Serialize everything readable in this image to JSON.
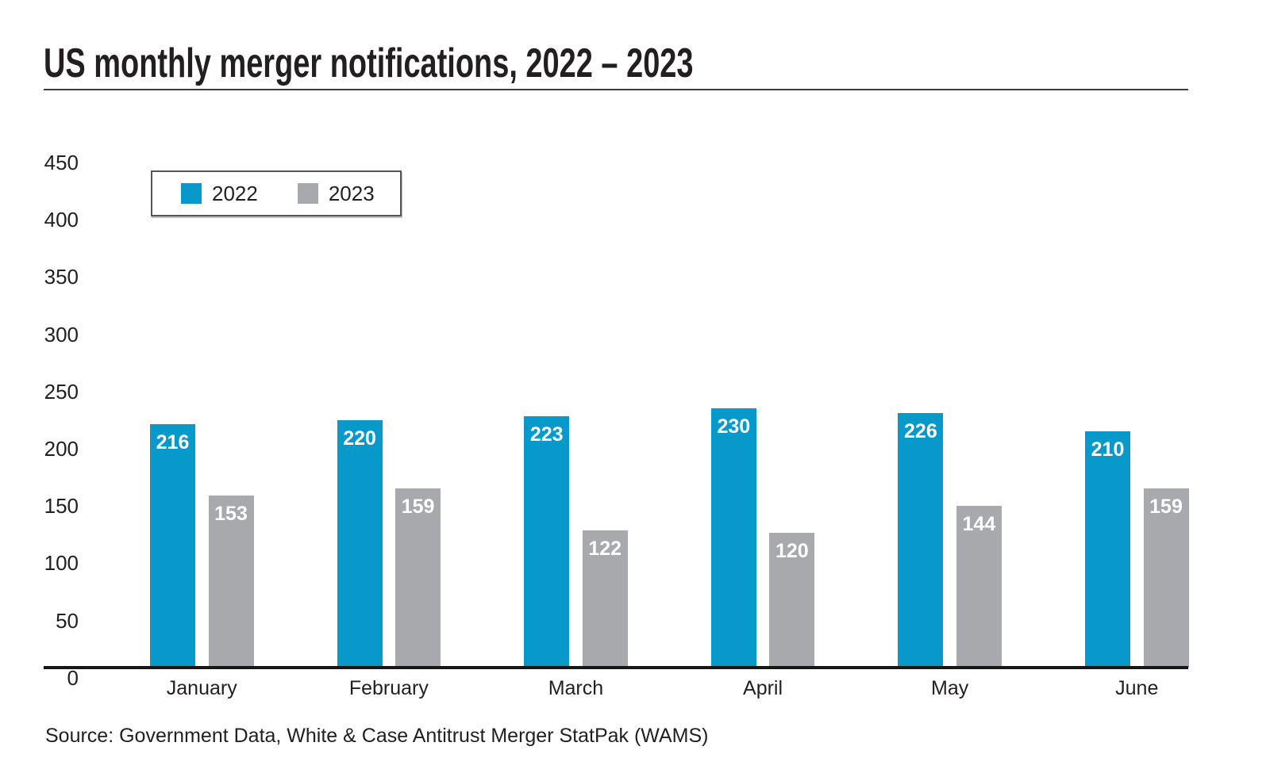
{
  "title": "US monthly merger notifications, 2022 – 2023",
  "source_line": "Source: Government Data, White & Case Antitrust Merger StatPak (WAMS)",
  "legend": {
    "items": [
      {
        "label": "2022",
        "color": "#0899cb"
      },
      {
        "label": "2023",
        "color": "#a7a9ac"
      }
    ]
  },
  "colors": {
    "series_2022": "#0899cb",
    "series_2023": "#a7a9ac",
    "text": "#231f20",
    "axis": "#161616",
    "bar_value_text": "#ffffff"
  },
  "chart_data": {
    "type": "bar",
    "title": "US monthly merger notifications, 2022 – 2023",
    "categories": [
      "January",
      "February",
      "March",
      "April",
      "May",
      "June"
    ],
    "series": [
      {
        "name": "2022",
        "color": "#0899cb",
        "values": [
          216,
          220,
          223,
          230,
          226,
          210
        ]
      },
      {
        "name": "2023",
        "color": "#a7a9ac",
        "values": [
          153,
          159,
          122,
          120,
          144,
          159
        ]
      }
    ],
    "xlabel": "",
    "ylabel": "",
    "ylim": [
      0,
      450
    ],
    "ytick_step": 50,
    "ytick_labels": [
      "450",
      "400",
      "350",
      "300",
      "250",
      "200",
      "150",
      "100",
      "50",
      "0"
    ],
    "grid": false,
    "legend_position": "top-left",
    "data_labels": "inside-top, white bold"
  }
}
